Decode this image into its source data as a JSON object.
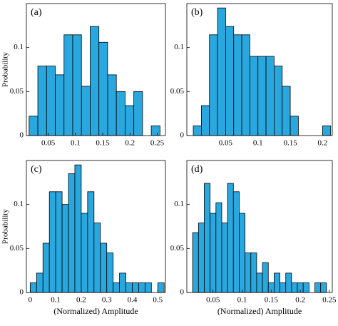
{
  "chart_data": [
    {
      "type": "histogram",
      "title": "(a)",
      "ylabel": "Probability",
      "color": "#29a8df",
      "bins": [
        0.015,
        0.031,
        0.047,
        0.063,
        0.079,
        0.095,
        0.111,
        0.127,
        0.143,
        0.159,
        0.175,
        0.191,
        0.207,
        0.223,
        0.239,
        0.255
      ],
      "values": [
        0.022,
        0.079,
        0.079,
        0.069,
        0.1145,
        0.1145,
        0.056,
        0.124,
        0.106,
        0.069,
        0.05,
        0.034,
        0.05,
        0,
        0.011
      ],
      "xlim": [
        0.01,
        0.265
      ],
      "xticks": [
        0.05,
        0.1,
        0.15,
        0.2,
        0.25
      ],
      "ylim": [
        0,
        0.15
      ],
      "yticks": [
        0,
        0.05,
        0.1
      ]
    },
    {
      "type": "histogram",
      "title": "(b)",
      "color": "#29a8df",
      "bins": [
        0,
        0.0125,
        0.025,
        0.0375,
        0.05,
        0.0625,
        0.075,
        0.0875,
        0.1,
        0.1125,
        0.125,
        0.1375,
        0.15,
        0.1625,
        0.175,
        0.1875,
        0.2,
        0.2125
      ],
      "values": [
        0.011,
        0.034,
        0.1145,
        0.145,
        0.124,
        0.1145,
        0.1145,
        0.09,
        0.09,
        0.09,
        0.079,
        0.056,
        0.022,
        0,
        0,
        0,
        0.011
      ],
      "xlim": [
        -0.01,
        0.215
      ],
      "xticks": [
        0.05,
        0.1,
        0.15,
        0.2
      ],
      "ylim": [
        0,
        0.15
      ],
      "yticks": [
        0,
        0.05,
        0.1
      ]
    },
    {
      "type": "histogram",
      "title": "(c)",
      "ylabel": "Probability",
      "xlabel": "(Normalized) Amplitude",
      "color": "#29a8df",
      "bins": [
        0,
        0.025,
        0.05,
        0.075,
        0.1,
        0.125,
        0.15,
        0.175,
        0.2,
        0.225,
        0.25,
        0.275,
        0.3,
        0.325,
        0.35,
        0.375,
        0.4,
        0.425,
        0.45,
        0.475,
        0.5,
        0.525
      ],
      "values": [
        0.011,
        0.022,
        0.056,
        0.1145,
        0.1145,
        0.1,
        0.135,
        0.145,
        0.09,
        0.1145,
        0.079,
        0.056,
        0.045,
        0.011,
        0.022,
        0.011,
        0.011,
        0.011,
        0.011,
        0,
        0.011
      ],
      "xlim": [
        -0.015,
        0.53
      ],
      "xticks": [
        0,
        0.1,
        0.2,
        0.3,
        0.4,
        0.5
      ],
      "ylim": [
        0,
        0.15
      ],
      "yticks": [
        0,
        0.05,
        0.1
      ]
    },
    {
      "type": "histogram",
      "title": "(d)",
      "xlabel": "(Normalized) Amplitude",
      "color": "#29a8df",
      "bins": [
        0.015,
        0.025,
        0.035,
        0.045,
        0.055,
        0.065,
        0.075,
        0.085,
        0.095,
        0.105,
        0.115,
        0.125,
        0.135,
        0.145,
        0.155,
        0.165,
        0.175,
        0.185,
        0.195,
        0.205,
        0.215,
        0.225,
        0.235,
        0.245
      ],
      "values": [
        0.068,
        0.079,
        0.124,
        0.09,
        0.102,
        0.079,
        0.124,
        0.1145,
        0.09,
        0.045,
        0.045,
        0.022,
        0.034,
        0.011,
        0.022,
        0.011,
        0.022,
        0.011,
        0.011,
        0.011,
        0,
        0.011,
        0.011
      ],
      "xlim": [
        0.005,
        0.255
      ],
      "xticks": [
        0.05,
        0.1,
        0.15,
        0.2,
        0.25
      ],
      "ylim": [
        0,
        0.15
      ],
      "yticks": [
        0,
        0.05,
        0.1
      ]
    }
  ]
}
